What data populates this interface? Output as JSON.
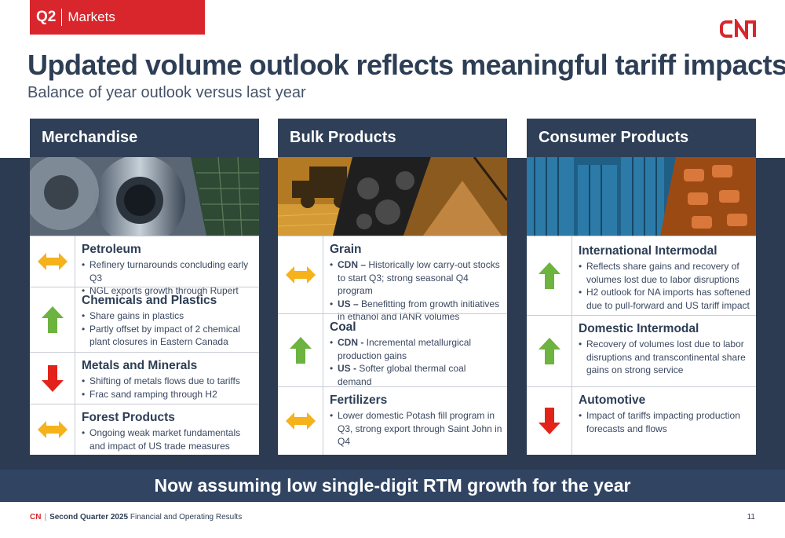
{
  "tag": {
    "quarter": "Q2",
    "section": "Markets"
  },
  "logo": "CN",
  "title": "Updated volume outlook reflects meaningful tariff impacts",
  "subtitle": "Balance of year outlook versus last year",
  "columns": [
    {
      "header": "Merchandise",
      "image": "steel-coils-and-lumber-photo",
      "rows": [
        {
          "icon": "sideways-arrow-icon",
          "title": "Petroleum",
          "bullets": [
            {
              "lead": "",
              "text": "Refinery turnarounds concluding early Q3"
            },
            {
              "lead": "",
              "text": "NGL exports growth through Rupert"
            }
          ]
        },
        {
          "icon": "up-arrow-icon",
          "title": "Chemicals and Plastics",
          "bullets": [
            {
              "lead": "",
              "text": "Share gains in plastics"
            },
            {
              "lead": "",
              "text": "Partly offset by impact of 2 chemical plant closures in Eastern Canada"
            }
          ]
        },
        {
          "icon": "down-arrow-icon",
          "title": "Metals and Minerals",
          "bullets": [
            {
              "lead": "",
              "text": "Shifting of metals flows due to tariffs"
            },
            {
              "lead": "",
              "text": "Frac sand ramping through H2"
            }
          ]
        },
        {
          "icon": "sideways-arrow-icon",
          "title": "Forest Products",
          "bullets": [
            {
              "lead": "",
              "text": "Ongoing weak market fundamentals and impact of US trade measures"
            }
          ]
        }
      ]
    },
    {
      "header": "Bulk Products",
      "image": "combine-harvester-coal-potash-photo",
      "rows": [
        {
          "icon": "sideways-arrow-icon",
          "title": "Grain",
          "bullets": [
            {
              "lead": "CDN –",
              "text": " Historically low carry-out stocks to start Q3; strong seasonal Q4 program"
            },
            {
              "lead": "US –",
              "text": " Benefitting from growth initiatives in ethanol and IANR volumes"
            }
          ]
        },
        {
          "icon": "up-arrow-icon",
          "title": "Coal",
          "bullets": [
            {
              "lead": "CDN -",
              "text": " Incremental metallurgical production gains"
            },
            {
              "lead": "US -",
              "text": " Softer global thermal coal demand"
            }
          ]
        },
        {
          "icon": "sideways-arrow-icon",
          "title": "Fertilizers",
          "bullets": [
            {
              "lead": "",
              "text": "Lower domestic Potash fill program in Q3, strong export through Saint John in Q4"
            }
          ]
        }
      ]
    },
    {
      "header": "Consumer Products",
      "image": "containers-and-autos-photo",
      "rows": [
        {
          "icon": "up-arrow-icon",
          "title": "International Intermodal",
          "bullets": [
            {
              "lead": "",
              "text": "Reflects share gains and recovery of volumes lost due to labor disruptions"
            },
            {
              "lead": "",
              "text": "H2 outlook for NA imports has softened due to pull-forward and US tariff impact"
            }
          ]
        },
        {
          "icon": "up-arrow-icon",
          "title": "Domestic Intermodal",
          "bullets": [
            {
              "lead": "",
              "text": "Recovery of volumes lost due to labor disruptions and transcontinental share gains on strong service"
            }
          ]
        },
        {
          "icon": "down-arrow-icon",
          "title": "Automotive",
          "bullets": [
            {
              "lead": "",
              "text": "Impact of tariffs impacting production forecasts and flows"
            }
          ]
        }
      ]
    }
  ],
  "banner": "Now assuming low single-digit RTM growth for the year",
  "footer": {
    "brand": "CN",
    "doc_bold": "Second Quarter 2025",
    "doc_rest": " Financial and Operating Results",
    "page": "11"
  },
  "colors": {
    "red": "#d8262c",
    "navy": "#2d3e55",
    "amber": "#f5b21b",
    "green": "#6cb33f",
    "arrow_red": "#e2231a"
  }
}
